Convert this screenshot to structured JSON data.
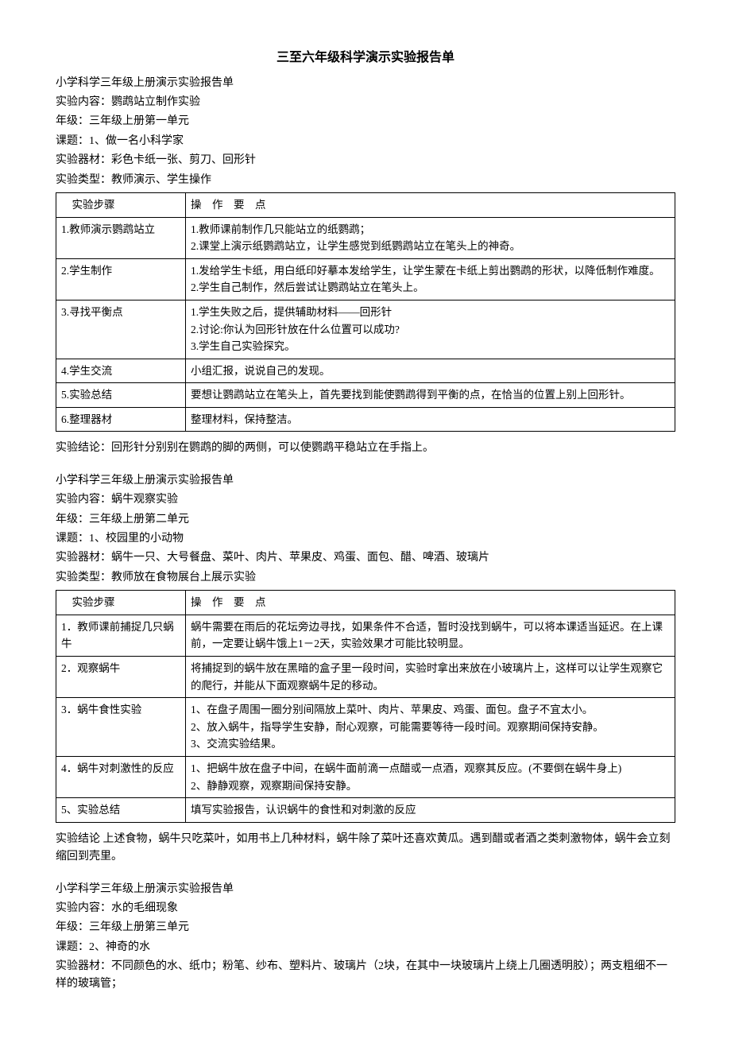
{
  "main_title": "三至六年级科学演示实验报告单",
  "experiments": [
    {
      "header": "小学科学三年级上册演示实验报告单",
      "content_label": "实验内容：",
      "content": "鹦鹉站立制作实验",
      "grade_label": "年级：",
      "grade": "三年级上册第一单元",
      "topic_label": "课题：",
      "topic": "1、做一名小科学家",
      "materials_label": "实验器材：",
      "materials": "彩色卡纸一张、剪刀、回形针",
      "type_label": "实验类型：",
      "type": "教师演示、学生操作",
      "table_header_left": "实验步骤",
      "table_header_right": "操　作　要　点",
      "rows": [
        {
          "step": "1.教师演示鹦鹉站立",
          "detail": "1.教师课前制作几只能站立的纸鹦鹉；\n2.课堂上演示纸鹦鹉站立，让学生感觉到纸鹦鹉站立在笔头上的神奇。"
        },
        {
          "step": "2.学生制作",
          "detail": "1.发给学生卡纸，用白纸印好摹本发给学生，让学生蒙在卡纸上剪出鹦鹉的形状，以降低制作难度。\n2.学生自己制作，然后尝试让鹦鹉站立在笔头上。"
        },
        {
          "step": "3.寻找平衡点",
          "detail": "1.学生失败之后，提供辅助材料——回形针\n2.讨论:你认为回形针放在什么位置可以成功?\n3.学生自己实验探究。"
        },
        {
          "step": "4.学生交流",
          "detail": "小组汇报，说说自己的发现。"
        },
        {
          "step": "5.实验总结",
          "detail": "要想让鹦鹉站立在笔头上，首先要找到能使鹦鹉得到平衡的点，在恰当的位置上别上回形针。"
        },
        {
          "step": "6.整理器材",
          "detail": "整理材料，保持整洁。"
        }
      ],
      "conclusion_label": "实验结论：",
      "conclusion": "回形针分别别在鹦鹉的脚的两侧，可以使鹦鹉平稳站立在手指上。"
    },
    {
      "header": "小学科学三年级上册演示实验报告单",
      "content_label": "实验内容：",
      "content": "蜗牛观察实验",
      "grade_label": "年级：",
      "grade": "三年级上册第二单元",
      "topic_label": "课题：",
      "topic": "1、校园里的小动物",
      "materials_label": "实验器材：",
      "materials": "蜗牛一只、大号餐盘、菜叶、肉片、苹果皮、鸡蛋、面包、醋、啤酒、玻璃片",
      "type_label": "实验类型：",
      "type": "教师放在食物展台上展示实验",
      "table_header_left": "实验步骤",
      "table_header_right": "操　作　要　点",
      "rows": [
        {
          "step": "1．教师课前捕捉几只蜗牛",
          "detail": "蜗牛需要在雨后的花坛旁边寻找，如果条件不合适，暂时没找到蜗牛，可以将本课适当延迟。在上课前，一定要让蜗牛饿上1－2天，实验效果才可能比较明显。"
        },
        {
          "step": "2．观察蜗牛",
          "detail": "将捕捉到的蜗牛放在黑暗的盒子里一段时间，实验时拿出来放在小玻璃片上，这样可以让学生观察它的爬行，并能从下面观察蜗牛足的移动。"
        },
        {
          "step": "3．蜗牛食性实验",
          "detail": "1、在盘子周围一圈分别间隔放上菜叶、肉片、苹果皮、鸡蛋、面包。盘子不宜太小。\n2、放入蜗牛，指导学生安静，耐心观察，可能需要等待一段时间。观察期间保持安静。\n3、交流实验结果。"
        },
        {
          "step": "4．蜗牛对刺激性的反应",
          "detail": "1、把蜗牛放在盘子中间，在蜗牛面前滴一点醋或一点酒，观察其反应。(不要倒在蜗牛身上)\n2、静静观察，观察期间保持安静。"
        },
        {
          "step": "5、实验总结",
          "detail": "填写实验报告，认识蜗牛的食性和对刺激的反应"
        }
      ],
      "conclusion_label": "实验结论",
      "conclusion": "上述食物，蜗牛只吃菜叶，如用书上几种材料，蜗牛除了菜叶还喜欢黄瓜。遇到醋或者酒之类刺激物体，蜗牛会立刻缩回到壳里。"
    },
    {
      "header": "小学科学三年级上册演示实验报告单",
      "content_label": "实验内容：",
      "content": "水的毛细现象",
      "grade_label": "年级：",
      "grade": "三年级上册第三单元",
      "topic_label": "课题：",
      "topic": "2、神奇的水",
      "materials_label": "实验器材：",
      "materials": "不同颜色的水、纸巾；粉笔、纱布、塑料片、玻璃片（2块，在其中一块玻璃片上绕上几圈透明胶）；两支粗细不一样的玻璃管；"
    }
  ]
}
